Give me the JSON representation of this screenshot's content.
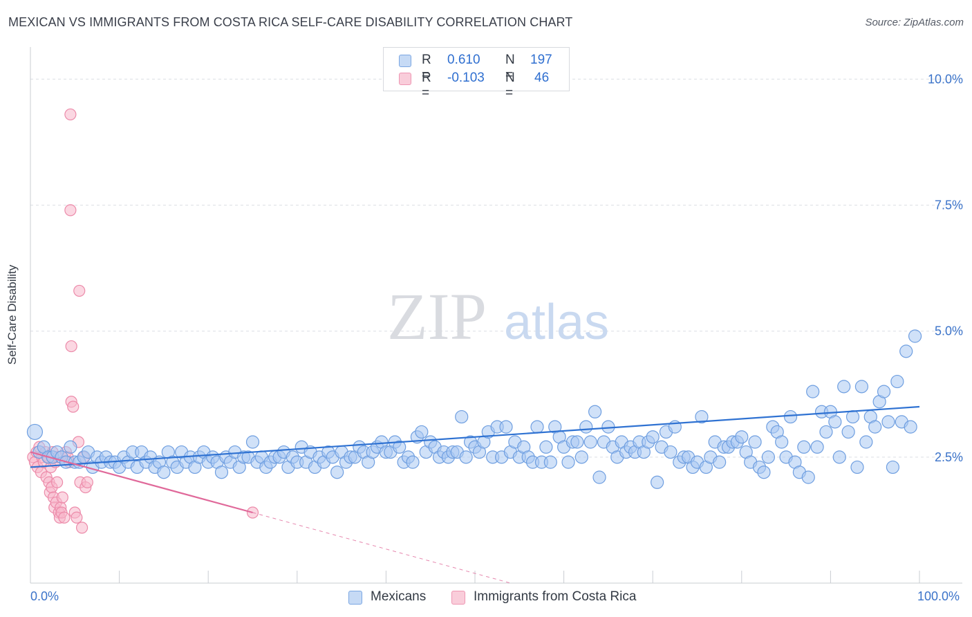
{
  "title": "MEXICAN VS IMMIGRANTS FROM COSTA RICA SELF-CARE DISABILITY CORRELATION CHART",
  "source": "Source: ZipAtlas.com",
  "watermark": {
    "zip": "ZIP",
    "atlas": "atlas"
  },
  "colors": {
    "blue_fill": "#a9c8f2",
    "blue_stroke": "#6e9ee0",
    "blue_line": "#2f72d2",
    "pink_fill": "#f7b7cb",
    "pink_stroke": "#ec8aa9",
    "pink_line": "#e0699a",
    "axis_label": "#3b73c9",
    "grid": "#dcdee3"
  },
  "legend": {
    "rows": [
      {
        "series": "blue",
        "r_label": "R =",
        "r_value": "0.610",
        "n_label": "N =",
        "n_value": "197"
      },
      {
        "series": "pink",
        "r_label": "R =",
        "r_value": "-0.103",
        "n_label": "N =",
        "n_value": "46"
      }
    ]
  },
  "bottom_legend": [
    "Mexicans",
    "Immigrants from Costa Rica"
  ],
  "chart_data": {
    "type": "scatter",
    "title": "MEXICAN VS IMMIGRANTS FROM COSTA RICA SELF-CARE DISABILITY CORRELATION CHART",
    "xlabel": "",
    "ylabel": "Self-Care Disability",
    "xlim": [
      0,
      100
    ],
    "ylim": [
      0,
      10.5
    ],
    "x_tick_labels": {
      "min": "0.0%",
      "max": "100.0%"
    },
    "y_ticks": [
      {
        "value": 10.0,
        "label": "10.0%"
      },
      {
        "value": 7.5,
        "label": "7.5%"
      },
      {
        "value": 5.0,
        "label": "5.0%"
      },
      {
        "value": 2.5,
        "label": "2.5%"
      }
    ],
    "grid": true,
    "series": [
      {
        "name": "Mexicans",
        "r": 0.61,
        "n": 197,
        "trend": {
          "x0": 0,
          "y0": 2.3,
          "x1": 100,
          "y1": 3.5
        },
        "points": [
          [
            0.5,
            3.0
          ],
          [
            1,
            2.6
          ],
          [
            1.5,
            2.7
          ],
          [
            2,
            2.5
          ],
          [
            2.5,
            2.5
          ],
          [
            3,
            2.6
          ],
          [
            3.5,
            2.5
          ],
          [
            4,
            2.4
          ],
          [
            4.5,
            2.7
          ],
          [
            5,
            2.4
          ],
          [
            5.5,
            2.4
          ],
          [
            6,
            2.5
          ],
          [
            6.5,
            2.6
          ],
          [
            7,
            2.3
          ],
          [
            7.5,
            2.5
          ],
          [
            8,
            2.4
          ],
          [
            8.5,
            2.5
          ],
          [
            9,
            2.4
          ],
          [
            9.5,
            2.4
          ],
          [
            10,
            2.3
          ],
          [
            10.5,
            2.5
          ],
          [
            11,
            2.4
          ],
          [
            11.5,
            2.6
          ],
          [
            12,
            2.3
          ],
          [
            12.5,
            2.6
          ],
          [
            13,
            2.4
          ],
          [
            13.5,
            2.5
          ],
          [
            14,
            2.3
          ],
          [
            14.5,
            2.4
          ],
          [
            15,
            2.2
          ],
          [
            15.5,
            2.6
          ],
          [
            16,
            2.4
          ],
          [
            16.5,
            2.3
          ],
          [
            17,
            2.6
          ],
          [
            17.5,
            2.4
          ],
          [
            18,
            2.5
          ],
          [
            18.5,
            2.3
          ],
          [
            19,
            2.5
          ],
          [
            19.5,
            2.6
          ],
          [
            20,
            2.4
          ],
          [
            20.5,
            2.5
          ],
          [
            21,
            2.4
          ],
          [
            21.5,
            2.2
          ],
          [
            22,
            2.5
          ],
          [
            22.5,
            2.4
          ],
          [
            23,
            2.6
          ],
          [
            23.5,
            2.3
          ],
          [
            24,
            2.5
          ],
          [
            24.5,
            2.5
          ],
          [
            25,
            2.8
          ],
          [
            25.5,
            2.4
          ],
          [
            26,
            2.5
          ],
          [
            26.5,
            2.3
          ],
          [
            27,
            2.4
          ],
          [
            27.5,
            2.5
          ],
          [
            28,
            2.5
          ],
          [
            28.5,
            2.6
          ],
          [
            29,
            2.3
          ],
          [
            29.5,
            2.5
          ],
          [
            30,
            2.4
          ],
          [
            30.5,
            2.7
          ],
          [
            31,
            2.4
          ],
          [
            31.5,
            2.6
          ],
          [
            32,
            2.3
          ],
          [
            32.5,
            2.5
          ],
          [
            33,
            2.4
          ],
          [
            33.5,
            2.6
          ],
          [
            34,
            2.5
          ],
          [
            34.5,
            2.2
          ],
          [
            35,
            2.6
          ],
          [
            35.5,
            2.4
          ],
          [
            36,
            2.5
          ],
          [
            36.5,
            2.5
          ],
          [
            37,
            2.7
          ],
          [
            37.5,
            2.6
          ],
          [
            38,
            2.4
          ],
          [
            38.5,
            2.6
          ],
          [
            39,
            2.7
          ],
          [
            39.5,
            2.8
          ],
          [
            40,
            2.6
          ],
          [
            40.5,
            2.6
          ],
          [
            41,
            2.8
          ],
          [
            41.5,
            2.7
          ],
          [
            42,
            2.4
          ],
          [
            42.5,
            2.5
          ],
          [
            43,
            2.4
          ],
          [
            43.5,
            2.9
          ],
          [
            44,
            3.0
          ],
          [
            44.5,
            2.6
          ],
          [
            45,
            2.8
          ],
          [
            45.5,
            2.7
          ],
          [
            46,
            2.5
          ],
          [
            46.5,
            2.6
          ],
          [
            47,
            2.5
          ],
          [
            47.5,
            2.6
          ],
          [
            48,
            2.6
          ],
          [
            48.5,
            3.3
          ],
          [
            49,
            2.5
          ],
          [
            49.5,
            2.8
          ],
          [
            50,
            2.7
          ],
          [
            50.5,
            2.6
          ],
          [
            51,
            2.8
          ],
          [
            51.5,
            3.0
          ],
          [
            52,
            2.5
          ],
          [
            52.5,
            3.1
          ],
          [
            53,
            2.5
          ],
          [
            53.5,
            3.1
          ],
          [
            54,
            2.6
          ],
          [
            54.5,
            2.8
          ],
          [
            55,
            2.5
          ],
          [
            55.5,
            2.7
          ],
          [
            56,
            2.5
          ],
          [
            56.5,
            2.4
          ],
          [
            57,
            3.1
          ],
          [
            57.5,
            2.4
          ],
          [
            58,
            2.7
          ],
          [
            58.5,
            2.4
          ],
          [
            59,
            3.1
          ],
          [
            59.5,
            2.9
          ],
          [
            60,
            2.7
          ],
          [
            60.5,
            2.4
          ],
          [
            61,
            2.8
          ],
          [
            61.5,
            2.8
          ],
          [
            62,
            2.5
          ],
          [
            62.5,
            3.1
          ],
          [
            63,
            2.8
          ],
          [
            63.5,
            3.4
          ],
          [
            64,
            2.1
          ],
          [
            64.5,
            2.8
          ],
          [
            65,
            3.1
          ],
          [
            65.5,
            2.7
          ],
          [
            66,
            2.5
          ],
          [
            66.5,
            2.8
          ],
          [
            67,
            2.6
          ],
          [
            67.5,
            2.7
          ],
          [
            68,
            2.6
          ],
          [
            68.5,
            2.8
          ],
          [
            69,
            2.6
          ],
          [
            69.5,
            2.8
          ],
          [
            70,
            2.9
          ],
          [
            70.5,
            2.0
          ],
          [
            71,
            2.7
          ],
          [
            71.5,
            3.0
          ],
          [
            72,
            2.6
          ],
          [
            72.5,
            3.1
          ],
          [
            73,
            2.4
          ],
          [
            73.5,
            2.5
          ],
          [
            74,
            2.5
          ],
          [
            74.5,
            2.3
          ],
          [
            75,
            2.4
          ],
          [
            75.5,
            3.3
          ],
          [
            76,
            2.3
          ],
          [
            76.5,
            2.5
          ],
          [
            77,
            2.8
          ],
          [
            77.5,
            2.4
          ],
          [
            78,
            2.7
          ],
          [
            78.5,
            2.7
          ],
          [
            79,
            2.8
          ],
          [
            79.5,
            2.8
          ],
          [
            80,
            2.9
          ],
          [
            80.5,
            2.6
          ],
          [
            81,
            2.4
          ],
          [
            81.5,
            2.8
          ],
          [
            82,
            2.3
          ],
          [
            82.5,
            2.2
          ],
          [
            83,
            2.5
          ],
          [
            83.5,
            3.1
          ],
          [
            84,
            3.0
          ],
          [
            84.5,
            2.8
          ],
          [
            85,
            2.5
          ],
          [
            85.5,
            3.3
          ],
          [
            86,
            2.4
          ],
          [
            86.5,
            2.2
          ],
          [
            87,
            2.7
          ],
          [
            87.5,
            2.1
          ],
          [
            88,
            3.8
          ],
          [
            88.5,
            2.7
          ],
          [
            89,
            3.4
          ],
          [
            89.5,
            3.0
          ],
          [
            90,
            3.4
          ],
          [
            90.5,
            3.2
          ],
          [
            91,
            2.5
          ],
          [
            91.5,
            3.9
          ],
          [
            92,
            3.0
          ],
          [
            92.5,
            3.3
          ],
          [
            93,
            2.3
          ],
          [
            93.5,
            3.9
          ],
          [
            94,
            2.8
          ],
          [
            94.5,
            3.3
          ],
          [
            95,
            3.1
          ],
          [
            95.5,
            3.6
          ],
          [
            96,
            3.8
          ],
          [
            96.5,
            3.2
          ],
          [
            97,
            2.3
          ],
          [
            97.5,
            4.0
          ],
          [
            98,
            3.2
          ],
          [
            98.5,
            4.6
          ],
          [
            99,
            3.1
          ],
          [
            99.5,
            4.9
          ]
        ]
      },
      {
        "name": "Immigrants from Costa Rica",
        "r": -0.103,
        "n": 46,
        "trend": {
          "x0": 0,
          "y0": 2.6,
          "x1": 25,
          "y1": 1.4,
          "dashed_x1": 54,
          "dashed_y1": 0.0
        },
        "points": [
          [
            0.3,
            2.5
          ],
          [
            0.5,
            2.4
          ],
          [
            0.7,
            2.6
          ],
          [
            0.8,
            2.3
          ],
          [
            1,
            2.7
          ],
          [
            1.2,
            2.2
          ],
          [
            1.3,
            2.5
          ],
          [
            1.5,
            2.4
          ],
          [
            1.7,
            2.6
          ],
          [
            1.8,
            2.1
          ],
          [
            2,
            2.5
          ],
          [
            2.1,
            2.0
          ],
          [
            2.2,
            1.8
          ],
          [
            2.3,
            2.3
          ],
          [
            2.4,
            1.9
          ],
          [
            2.5,
            2.6
          ],
          [
            2.6,
            1.7
          ],
          [
            2.7,
            1.5
          ],
          [
            2.8,
            2.4
          ],
          [
            2.9,
            1.6
          ],
          [
            3,
            2.0
          ],
          [
            3.1,
            2.5
          ],
          [
            3.2,
            1.4
          ],
          [
            3.3,
            1.3
          ],
          [
            3.4,
            1.5
          ],
          [
            3.5,
            1.4
          ],
          [
            3.6,
            1.7
          ],
          [
            3.8,
            1.3
          ],
          [
            4,
            2.6
          ],
          [
            4.2,
            2.5
          ],
          [
            4.4,
            2.4
          ],
          [
            4.6,
            3.6
          ],
          [
            4.8,
            3.5
          ],
          [
            5,
            1.4
          ],
          [
            5.2,
            1.3
          ],
          [
            5.4,
            2.8
          ],
          [
            5.6,
            2.0
          ],
          [
            5.8,
            1.1
          ],
          [
            6,
            2.5
          ],
          [
            6.2,
            1.9
          ],
          [
            6.4,
            2.0
          ],
          [
            4.5,
            9.3
          ],
          [
            4.5,
            7.4
          ],
          [
            5.5,
            5.8
          ],
          [
            4.6,
            4.7
          ],
          [
            25,
            1.4
          ]
        ]
      }
    ]
  }
}
